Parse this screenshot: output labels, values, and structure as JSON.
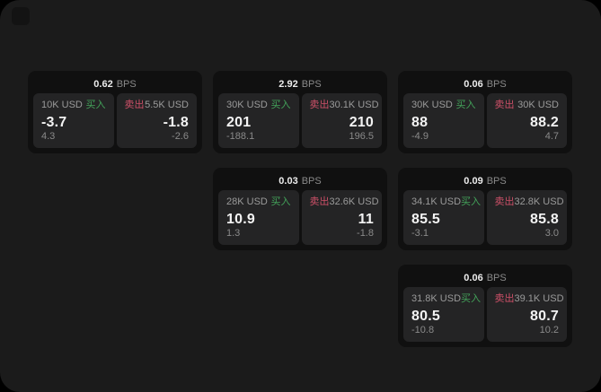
{
  "labels": {
    "bps_unit": "BPS",
    "buy": "买入",
    "sell": "卖出"
  },
  "colors": {
    "buy_text": "#43a35a",
    "sell_text": "#cd5068",
    "screen_bg": "#1b1b1b",
    "card_bg": "#101010",
    "panel_bg": "#242425"
  },
  "cards": [
    {
      "bps": "0.62",
      "row": 1,
      "col": 1,
      "buy": {
        "amount": "10K USD",
        "price": "-3.7",
        "delta": "4.3"
      },
      "sell": {
        "amount": "5.5K USD",
        "price": "-1.8",
        "delta": "-2.6"
      }
    },
    {
      "bps": "2.92",
      "row": 1,
      "col": 2,
      "buy": {
        "amount": "30K USD",
        "price": "201",
        "delta": "-188.1"
      },
      "sell": {
        "amount": "30.1K USD",
        "price": "210",
        "delta": "196.5"
      }
    },
    {
      "bps": "0.06",
      "row": 1,
      "col": 3,
      "buy": {
        "amount": "30K USD",
        "price": "88",
        "delta": "-4.9"
      },
      "sell": {
        "amount": "30K USD",
        "price": "88.2",
        "delta": "4.7"
      }
    },
    {
      "bps": "0.03",
      "row": 2,
      "col": 2,
      "buy": {
        "amount": "28K USD",
        "price": "10.9",
        "delta": "1.3"
      },
      "sell": {
        "amount": "32.6K USD",
        "price": "11",
        "delta": "-1.8"
      }
    },
    {
      "bps": "0.09",
      "row": 2,
      "col": 3,
      "buy": {
        "amount": "34.1K USD",
        "price": "85.5",
        "delta": "-3.1"
      },
      "sell": {
        "amount": "32.8K USD",
        "price": "85.8",
        "delta": "3.0"
      }
    },
    {
      "bps": "0.06",
      "row": 3,
      "col": 3,
      "buy": {
        "amount": "31.8K USD",
        "price": "80.5",
        "delta": "-10.8"
      },
      "sell": {
        "amount": "39.1K USD",
        "price": "80.7",
        "delta": "10.2"
      }
    }
  ]
}
